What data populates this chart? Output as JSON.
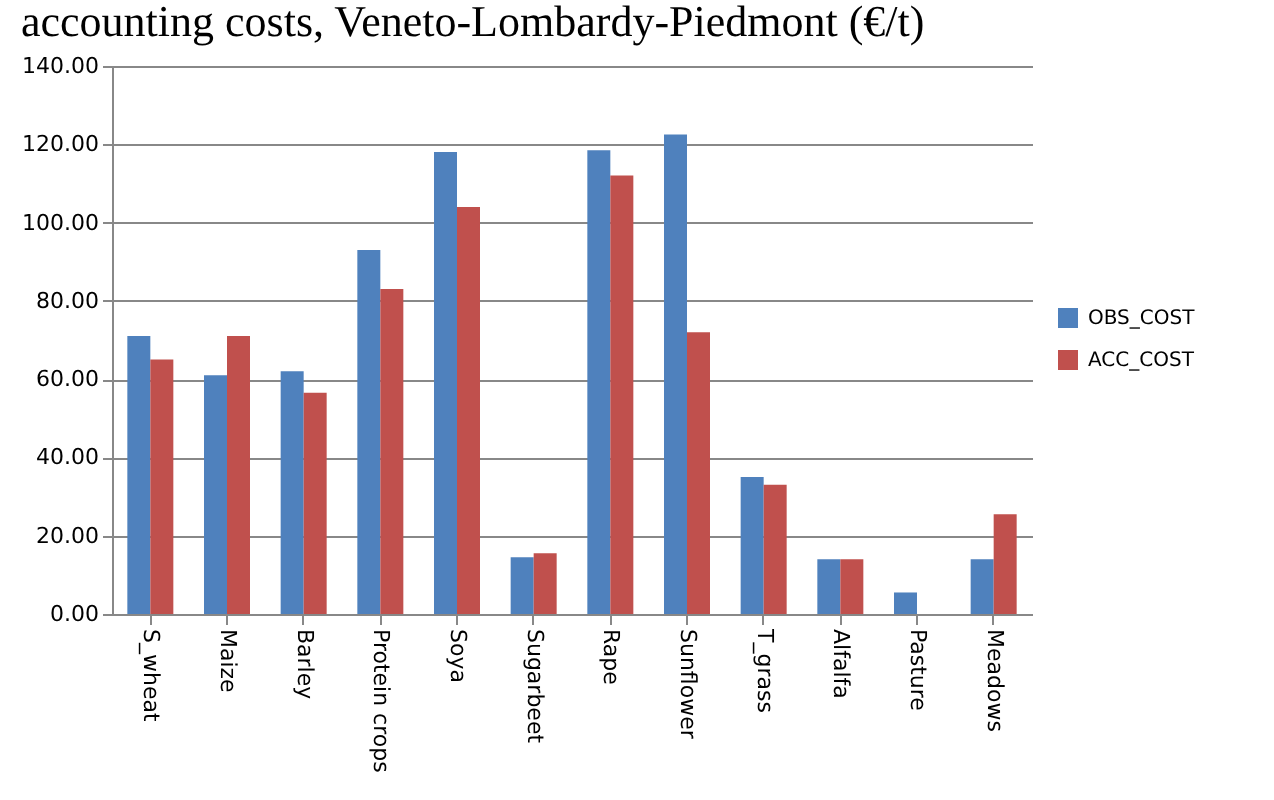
{
  "chart_data": {
    "type": "bar",
    "title": "accounting costs, Veneto-Lombardy-Piedmont (€/t)",
    "categories": [
      "S_wheat",
      "Maize",
      "Barley",
      "Protein crops",
      "Soya",
      "Sugarbeet",
      "Rape",
      "Sunflower",
      "T_grass",
      "Alfalfa",
      "Pasture",
      "Meadows"
    ],
    "series": [
      {
        "name": "OBS_COST",
        "color": "#4f81bd",
        "values": [
          71,
          61,
          62,
          93,
          118,
          14.5,
          118.5,
          122.5,
          35,
          14,
          5.5,
          14
        ]
      },
      {
        "name": "ACC_COST",
        "color": "#c0504d",
        "values": [
          65,
          71,
          56.5,
          83,
          104,
          15.5,
          112,
          72,
          33,
          14,
          null,
          25.5
        ]
      }
    ],
    "ylim": [
      0,
      140
    ],
    "yticks": [
      {
        "value": 0,
        "label": "0.00"
      },
      {
        "value": 20,
        "label": "20.00"
      },
      {
        "value": 40,
        "label": "40.00"
      },
      {
        "value": 60,
        "label": "60.00"
      },
      {
        "value": 80,
        "label": "80.00"
      },
      {
        "value": 100,
        "label": "100.00"
      },
      {
        "value": 120,
        "label": "120.00"
      },
      {
        "value": 140,
        "label": "140.00"
      }
    ],
    "grid": "y",
    "legend": "right"
  }
}
